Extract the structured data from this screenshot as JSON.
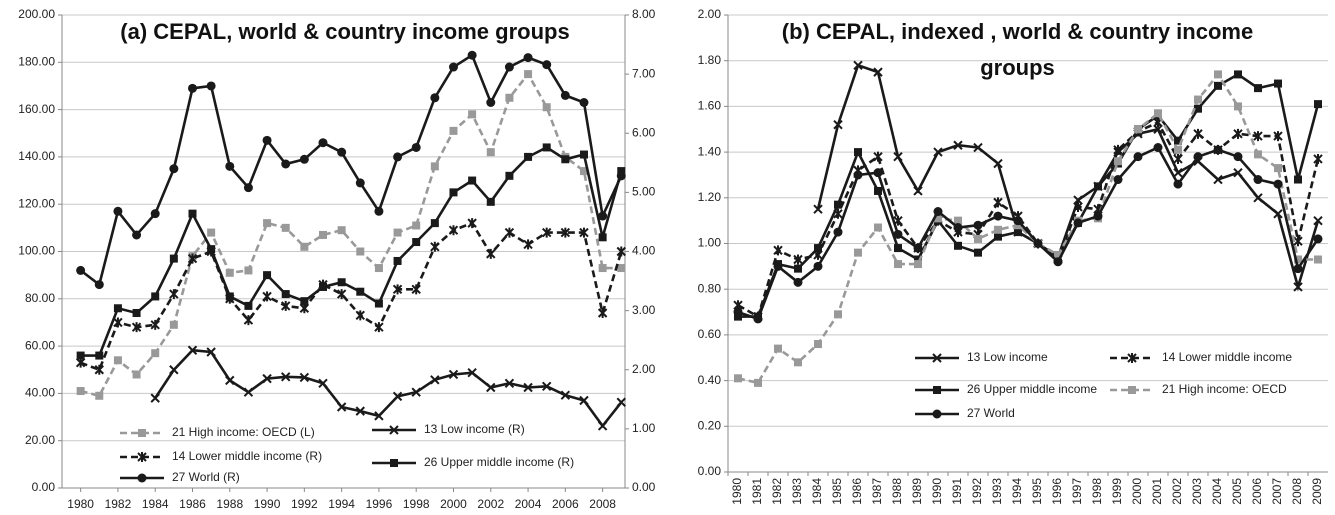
{
  "chart_data": [
    {
      "type": "line",
      "title": "(a) CEPAL, world & country income groups",
      "x": [
        1980,
        1981,
        1982,
        1983,
        1984,
        1985,
        1986,
        1987,
        1988,
        1989,
        1990,
        1991,
        1992,
        1993,
        1994,
        1995,
        1996,
        1997,
        1998,
        1999,
        2000,
        2001,
        2002,
        2003,
        2004,
        2005,
        2006,
        2007,
        2008,
        2009
      ],
      "xlim": [
        1979,
        2009.2
      ],
      "xticks": [
        1980,
        1982,
        1984,
        1986,
        1988,
        1990,
        1992,
        1994,
        1996,
        1998,
        2000,
        2002,
        2004,
        2006,
        2008
      ],
      "ylim": [
        0,
        200
      ],
      "yticks": [
        {
          "value": 0,
          "label": "0.00"
        },
        {
          "value": 20,
          "label": "20.00"
        },
        {
          "value": 40,
          "label": "40.00"
        },
        {
          "value": 60,
          "label": "60.00"
        },
        {
          "value": 80,
          "label": "80.00"
        },
        {
          "value": 100,
          "label": "100.00"
        },
        {
          "value": 120,
          "label": "120.00"
        },
        {
          "value": 140,
          "label": "140.00"
        },
        {
          "value": 160,
          "label": "160.00"
        },
        {
          "value": 180,
          "label": "180.00"
        },
        {
          "value": 200,
          "label": "200.00"
        }
      ],
      "y2lim": [
        0,
        8
      ],
      "y2ticks": [
        {
          "value": 0,
          "label": "0.00"
        },
        {
          "value": 1,
          "label": "1.00"
        },
        {
          "value": 2,
          "label": "2.00"
        },
        {
          "value": 3,
          "label": "3.00"
        },
        {
          "value": 4,
          "label": "4.00"
        },
        {
          "value": 5,
          "label": "5.00"
        },
        {
          "value": 6,
          "label": "6.00"
        },
        {
          "value": 7,
          "label": "7.00"
        },
        {
          "value": 8,
          "label": "8.00"
        }
      ],
      "grid": true,
      "legend": "lower left",
      "series": [
        {
          "name": "21  High income: OECD (L)",
          "color": "#999999",
          "dash": "dashed",
          "marker": "square",
          "values": [
            41,
            39,
            54,
            48,
            57,
            69,
            98,
            108,
            91,
            92,
            112,
            110,
            102,
            107,
            109,
            100,
            93,
            108,
            111,
            136,
            151,
            158,
            142,
            165,
            175,
            161,
            140,
            134,
            93,
            93
          ]
        },
        {
          "name": "13  Low income (R)",
          "color": "#1a1a1a",
          "dash": "solid",
          "marker": "x",
          "axis": "y2",
          "values": [
            null,
            null,
            null,
            null,
            1.52,
            2.0,
            2.33,
            2.3,
            1.82,
            1.62,
            1.85,
            1.88,
            1.87,
            1.77,
            1.37,
            1.3,
            1.22,
            1.55,
            1.62,
            1.83,
            1.92,
            1.95,
            1.7,
            1.77,
            1.7,
            1.72,
            1.57,
            1.48,
            1.05,
            1.45
          ]
        },
        {
          "name": "14  Lower middle income (R)",
          "color": "#1a1a1a",
          "dash": "dashed",
          "marker": "asterisk",
          "axis": "y2",
          "values": [
            2.12,
            2.0,
            2.8,
            2.72,
            2.76,
            3.28,
            3.88,
            4.0,
            3.2,
            2.84,
            3.24,
            3.08,
            3.04,
            3.44,
            3.28,
            2.92,
            2.72,
            3.36,
            3.36,
            4.08,
            4.36,
            4.48,
            3.96,
            4.32,
            4.12,
            4.32,
            4.32,
            4.32,
            2.96,
            4.0
          ]
        },
        {
          "name": "26  Upper middle income (R)",
          "color": "#1a1a1a",
          "dash": "solid",
          "marker": "square",
          "axis": "y2",
          "values": [
            2.24,
            2.24,
            3.04,
            2.96,
            3.24,
            3.88,
            4.64,
            4.04,
            3.24,
            3.08,
            3.6,
            3.28,
            3.16,
            3.4,
            3.48,
            3.32,
            3.12,
            3.84,
            4.16,
            4.48,
            5.0,
            5.2,
            4.84,
            5.28,
            5.6,
            5.76,
            5.56,
            5.64,
            4.24,
            5.36
          ]
        },
        {
          "name": "27  World (R)",
          "color": "#1a1a1a",
          "dash": "solid",
          "marker": "circle",
          "axis": "y2",
          "values": [
            3.68,
            3.44,
            4.68,
            4.28,
            4.64,
            5.4,
            6.76,
            6.8,
            5.44,
            5.08,
            5.88,
            5.48,
            5.56,
            5.84,
            5.68,
            5.16,
            4.68,
            5.6,
            5.76,
            6.6,
            7.12,
            7.32,
            6.52,
            7.12,
            7.28,
            7.16,
            6.64,
            6.52,
            4.6,
            5.28
          ]
        }
      ]
    },
    {
      "type": "line",
      "title": "(b) CEPAL, indexed , world & country income groups",
      "categories": [
        "1980",
        "1981",
        "1982",
        "1983",
        "1984",
        "1985",
        "1986",
        "1987",
        "1988",
        "1989",
        "1990",
        "1991",
        "1992",
        "1993",
        "1994",
        "1995",
        "1996",
        "1997",
        "1998",
        "1999",
        "2000",
        "2001",
        "2002",
        "2003",
        "2004",
        "2005",
        "2006",
        "2007",
        "2008",
        "2009"
      ],
      "ylim": [
        0,
        2
      ],
      "yticks": [
        {
          "value": 0,
          "label": "0.00"
        },
        {
          "value": 0.2,
          "label": "0.20"
        },
        {
          "value": 0.4,
          "label": "0.40"
        },
        {
          "value": 0.6,
          "label": "0.60"
        },
        {
          "value": 0.8,
          "label": "0.80"
        },
        {
          "value": 1,
          "label": "1.00"
        },
        {
          "value": 1.2,
          "label": "1.20"
        },
        {
          "value": 1.4,
          "label": "1.40"
        },
        {
          "value": 1.6,
          "label": "1.60"
        },
        {
          "value": 1.8,
          "label": "1.80"
        },
        {
          "value": 2,
          "label": "2.00"
        }
      ],
      "grid": true,
      "legend": "center right",
      "series": [
        {
          "name": "13  Low income",
          "color": "#1a1a1a",
          "dash": "solid",
          "marker": "x",
          "values": [
            null,
            null,
            null,
            null,
            1.15,
            1.52,
            1.78,
            1.75,
            1.38,
            1.23,
            1.4,
            1.43,
            1.42,
            1.35,
            1.05,
            1.0,
            0.94,
            1.19,
            1.25,
            1.4,
            1.48,
            1.5,
            1.31,
            1.36,
            1.28,
            1.31,
            1.2,
            1.13,
            0.81,
            1.1
          ]
        },
        {
          "name": "14  Lower middle income",
          "color": "#1a1a1a",
          "dash": "dashed",
          "marker": "asterisk",
          "values": [
            0.73,
            0.68,
            0.97,
            0.93,
            0.95,
            1.13,
            1.32,
            1.38,
            1.1,
            0.98,
            1.1,
            1.05,
            1.04,
            1.18,
            1.12,
            1.0,
            0.93,
            1.16,
            1.15,
            1.41,
            1.49,
            1.53,
            1.37,
            1.48,
            1.41,
            1.48,
            1.47,
            1.47,
            1.01,
            1.37
          ]
        },
        {
          "name": "26  Upper middle income",
          "color": "#1a1a1a",
          "dash": "solid",
          "marker": "square",
          "values": [
            0.68,
            0.68,
            0.91,
            0.89,
            0.98,
            1.17,
            1.4,
            1.23,
            0.98,
            0.93,
            1.1,
            0.99,
            0.96,
            1.03,
            1.05,
            1.0,
            0.94,
            1.09,
            1.25,
            1.35,
            1.5,
            1.56,
            1.45,
            1.59,
            1.69,
            1.74,
            1.68,
            1.7,
            1.28,
            1.61
          ]
        },
        {
          "name": "21  High income: OECD",
          "color": "#999999",
          "dash": "dashed",
          "marker": "square",
          "values": [
            0.41,
            0.39,
            0.54,
            0.48,
            0.56,
            0.69,
            0.96,
            1.07,
            0.91,
            0.91,
            1.11,
            1.1,
            1.02,
            1.06,
            1.08,
            1.0,
            0.95,
            1.1,
            1.11,
            1.36,
            1.5,
            1.57,
            1.41,
            1.63,
            1.74,
            1.6,
            1.39,
            1.33,
            0.93,
            0.93
          ]
        },
        {
          "name": "27  World",
          "color": "#1a1a1a",
          "dash": "solid",
          "marker": "circle",
          "values": [
            0.7,
            0.67,
            0.9,
            0.83,
            0.9,
            1.05,
            1.3,
            1.31,
            1.04,
            0.98,
            1.14,
            1.07,
            1.08,
            1.12,
            1.1,
            1.0,
            0.92,
            1.09,
            1.12,
            1.28,
            1.38,
            1.42,
            1.26,
            1.38,
            1.41,
            1.38,
            1.28,
            1.26,
            0.89,
            1.02
          ]
        }
      ]
    }
  ]
}
